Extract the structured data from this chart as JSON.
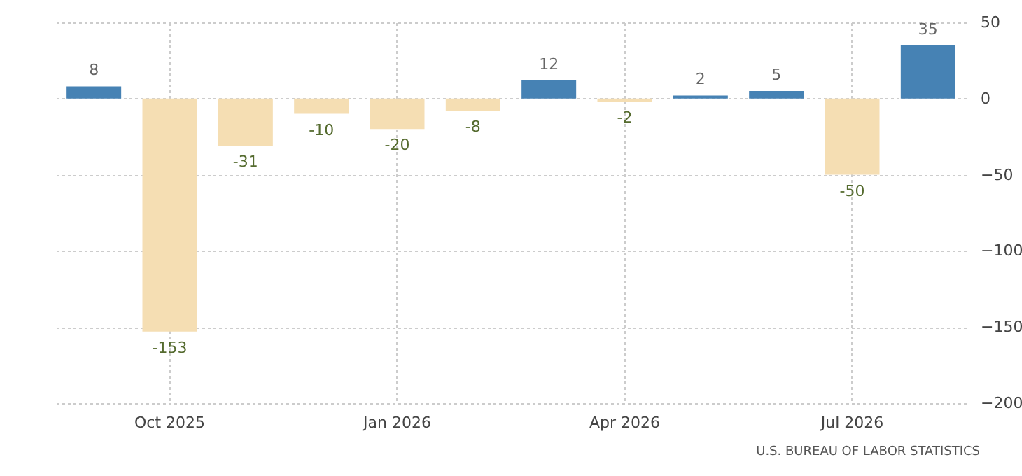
{
  "chart_data": {
    "type": "bar",
    "categories": [
      null,
      "Oct 2025",
      null,
      null,
      "Jan 2026",
      null,
      null,
      "Apr 2026",
      null,
      null,
      "Jul 2026",
      null
    ],
    "values": [
      8,
      -153,
      -31,
      -10,
      -20,
      -8,
      12,
      -2,
      2,
      5,
      -50,
      35
    ],
    "colors": [
      "#4682b4",
      "#f5deb3",
      "#f5deb3",
      "#f5deb3",
      "#f5deb3",
      "#f5deb3",
      "#4682b4",
      "#f5deb3",
      "#4682b4",
      "#4682b4",
      "#f5deb3",
      "#4682b4"
    ],
    "ylim": [
      -200,
      50
    ],
    "yticks": [
      -200,
      -150,
      -100,
      -50,
      0,
      50
    ],
    "grid": true,
    "data_labels": true,
    "annotations": [
      "U.S. BUREAU OF LABOR STATISTICS"
    ]
  }
}
